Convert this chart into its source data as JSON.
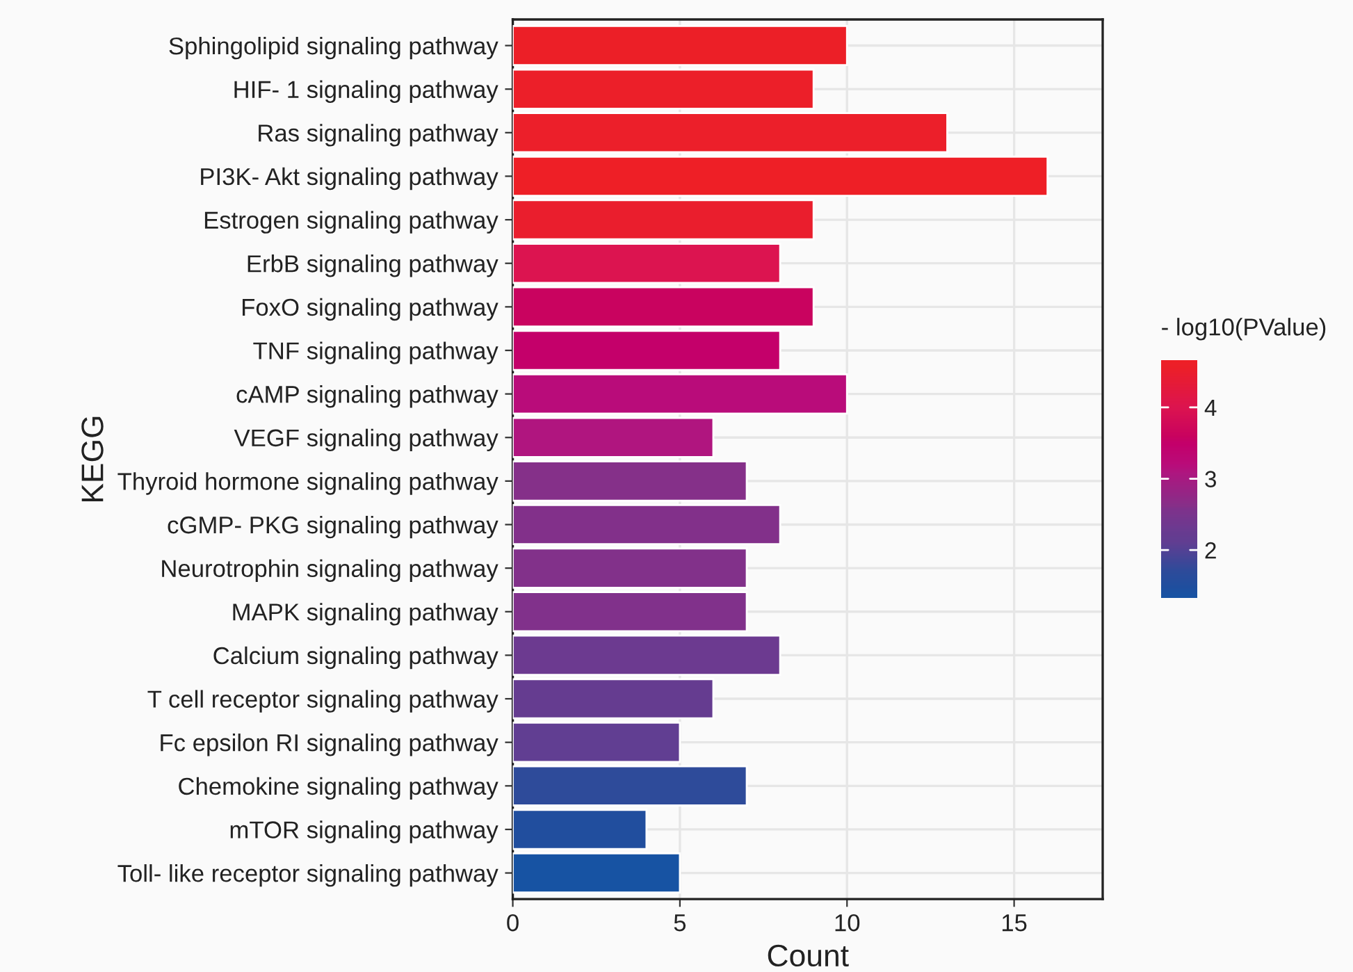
{
  "chart_data": {
    "type": "bar",
    "orientation": "horizontal",
    "xlabel": "Count",
    "ylabel": "KEGG",
    "clabel": "- log10(PValue)",
    "categories": [
      "Sphingolipid signaling pathway",
      "HIF- 1 signaling pathway",
      "Ras signaling pathway",
      "PI3K- Akt signaling pathway",
      "Estrogen signaling pathway",
      "ErbB signaling pathway",
      "FoxO signaling pathway",
      "TNF signaling pathway",
      "cAMP signaling pathway",
      "VEGF signaling pathway",
      "Thyroid hormone signaling pathway",
      "cGMP- PKG signaling pathway",
      "Neurotrophin signaling pathway",
      "MAPK signaling pathway",
      "Calcium signaling pathway",
      "T cell receptor signaling pathway",
      "Fc epsilon RI signaling pathway",
      "Chemokine signaling pathway",
      "mTOR signaling pathway",
      "Toll- like receptor signaling pathway"
    ],
    "values": [
      10,
      9,
      13,
      16,
      9,
      8,
      9,
      8,
      10,
      6,
      7,
      8,
      7,
      7,
      8,
      6,
      5,
      7,
      4,
      5
    ],
    "cvalues": [
      4.6,
      4.6,
      4.6,
      4.67,
      4.5,
      4.0,
      3.6,
      3.5,
      3.2,
      3.1,
      2.6,
      2.6,
      2.6,
      2.6,
      2.3,
      2.2,
      2.1,
      1.7,
      1.5,
      1.33
    ],
    "colors": [
      "#ec1f27",
      "#ec1f29",
      "#ec1f2a",
      "#ee1f26",
      "#ea1e2d",
      "#dc1450",
      "#c9035f",
      "#c4006a",
      "#b90c7a",
      "#b0157f",
      "#853089",
      "#82308a",
      "#82318a",
      "#81318b",
      "#6c3a90",
      "#653c90",
      "#613e92",
      "#2e4b9a",
      "#214e9e",
      "#1753a3"
    ],
    "xlim": [
      0,
      17.65
    ],
    "xticks": [
      0,
      5,
      10,
      15
    ],
    "clim": [
      1.33,
      4.67
    ],
    "cticks": [
      2,
      3,
      4
    ],
    "grid": true
  }
}
